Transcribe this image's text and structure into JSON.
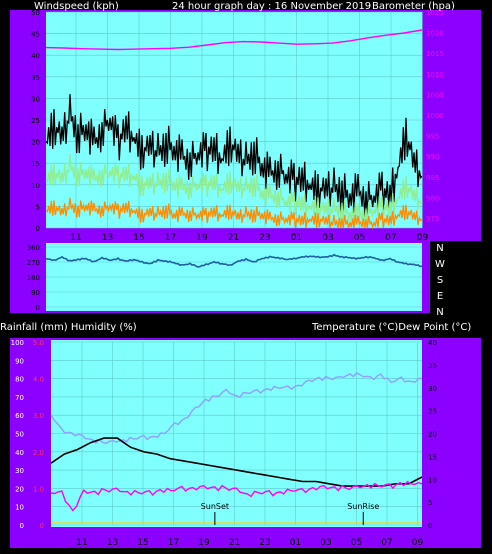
{
  "colors": {
    "background": "#000000",
    "panel": "#8b00ff",
    "plot_bg": "#80ffff",
    "grid": "#5ecaca",
    "gust": "#000000",
    "wind_avg": "#90ee90",
    "wind_low": "#ff8c00",
    "barometer": "#ff00ff",
    "direction": "#1f5fa0",
    "temperature": "#000000",
    "dew_point": "#ff00ff",
    "humidity": "#8fa0ff",
    "text_light": "#ffffff",
    "text_dark": "#000000",
    "tick_left": "#000000",
    "tick_right": "#ff00ff"
  },
  "header": {
    "left": "Windspeed (kph)",
    "center": "24 hour graph day : 16 November 2019",
    "right": "Barometer (hpa)"
  },
  "mid_labels": {
    "left": "Rainfall (mm)  Humidity (%)",
    "right": "Temperature (°C)Dew Point (°C)"
  },
  "chart_data": [
    {
      "type": "line",
      "name": "wind",
      "x_ticks": [
        "11",
        "13",
        "15",
        "17",
        "19",
        "21",
        "23",
        "01",
        "03",
        "05",
        "07",
        "09"
      ],
      "ylabel": "Windspeed (kph)",
      "ylim": [
        0,
        50
      ],
      "yticks": [
        "0",
        "5",
        "10",
        "15",
        "20",
        "25",
        "30",
        "35",
        "40",
        "45",
        "50"
      ],
      "y2label": "Barometer (hpa)",
      "y2lim": [
        970,
        1025
      ],
      "y2ticks": [
        "975",
        "980",
        "985",
        "990",
        "995",
        "1000",
        "1005",
        "1010",
        "1015",
        "1020",
        "1025"
      ],
      "series": [
        {
          "key": "gust",
          "values": [
            20,
            24,
            22,
            26,
            21,
            23,
            19,
            22,
            25,
            20,
            24,
            21,
            18,
            20,
            17,
            19,
            18,
            16,
            15,
            17,
            18,
            19,
            16,
            20,
            18,
            15,
            17,
            14,
            12,
            13,
            12,
            11,
            12,
            10,
            9,
            10,
            9,
            8,
            7,
            8,
            6,
            7,
            9,
            8,
            14,
            22,
            16,
            12
          ]
        },
        {
          "key": "avg",
          "values": [
            11,
            13,
            12,
            14,
            12,
            13,
            11,
            12,
            13,
            12,
            13,
            12,
            10,
            11,
            10,
            11,
            10,
            9,
            9,
            10,
            10,
            11,
            9,
            11,
            10,
            9,
            10,
            8,
            7,
            7,
            6,
            6,
            6,
            5,
            5,
            5,
            4,
            4,
            3,
            3,
            3,
            4,
            5,
            5,
            7,
            10,
            8,
            6
          ]
        },
        {
          "key": "low",
          "values": [
            4,
            5,
            4,
            5,
            4,
            5,
            4,
            4,
            5,
            4,
            5,
            4,
            3,
            4,
            3,
            4,
            3,
            3,
            3,
            3,
            3,
            4,
            3,
            4,
            3,
            3,
            3,
            3,
            2,
            2,
            2,
            2,
            2,
            2,
            2,
            2,
            1,
            1,
            1,
            1,
            1,
            1,
            2,
            2,
            3,
            4,
            3,
            2
          ]
        },
        {
          "key": "baro",
          "values": [
            1015.5,
            1015.4,
            1015.2,
            1015.1,
            1015.0,
            1015.1,
            1015.2,
            1015.3,
            1015.6,
            1016.2,
            1016.8,
            1017.1,
            1017.0,
            1016.7,
            1016.4,
            1016.5,
            1016.7,
            1017.3,
            1018.1,
            1018.8,
            1019.4,
            1020.2
          ]
        }
      ]
    },
    {
      "type": "line",
      "name": "wind_direction",
      "ylim": [
        0,
        360
      ],
      "yticks": [
        "360",
        "270",
        "180",
        "90",
        "0"
      ],
      "y2ticks": [
        "N",
        "W",
        "S",
        "E",
        "N"
      ],
      "values": [
        290,
        280,
        300,
        275,
        285,
        290,
        270,
        295,
        280,
        290,
        275,
        285,
        270,
        260,
        280,
        275,
        265,
        250,
        260,
        240,
        255,
        270,
        260,
        250,
        275,
        285,
        270,
        290,
        300,
        295,
        285,
        290,
        300,
        305,
        300,
        300,
        310,
        300,
        295,
        290,
        300,
        295,
        280,
        290,
        270,
        260,
        255,
        245
      ]
    },
    {
      "type": "line",
      "name": "temperature",
      "x_ticks": [
        "11",
        "13",
        "15",
        "17",
        "19",
        "21",
        "23",
        "01",
        "03",
        "05",
        "07",
        "09"
      ],
      "ylabel": "Rainfall (mm)  Humidity (%)",
      "ylim": [
        0,
        100
      ],
      "yticks": [
        "0",
        "10",
        "20",
        "30",
        "40",
        "50",
        "60",
        "70",
        "80",
        "90",
        "100"
      ],
      "rain_ticks": [
        "0",
        "1.0",
        "2.0",
        "3.0",
        "4.0",
        "5.0"
      ],
      "y2label": "Temperature (°C)Dew Point (°C)",
      "y2lim": [
        0,
        40
      ],
      "y2ticks": [
        "0",
        "5",
        "10",
        "15",
        "20",
        "25",
        "30",
        "35",
        "40"
      ],
      "annotations": [
        {
          "label": "SunSet",
          "hour": 20.6
        },
        {
          "label": "SunRise",
          "hour": 6.2
        }
      ],
      "series": [
        {
          "key": "temp",
          "values": [
            13.5,
            15.5,
            16.5,
            18,
            19,
            19,
            17,
            16,
            15.5,
            14.5,
            14,
            13.5,
            13,
            12.5,
            12,
            11.5,
            11,
            10.5,
            10,
            9.5,
            9.5,
            9,
            8.5,
            8.5,
            8.5,
            8.5,
            9,
            9,
            10.5
          ]
        },
        {
          "key": "dew",
          "values": [
            7,
            7,
            3,
            7,
            7,
            7.5,
            7.5,
            7,
            7,
            7,
            7.5,
            7.5,
            8,
            8,
            8,
            8,
            8,
            7.5,
            6.5,
            7,
            7,
            7,
            7.5,
            7.5,
            8,
            8,
            8,
            8,
            8,
            8.5,
            8.5,
            8.5,
            9,
            9,
            9
          ]
        },
        {
          "key": "humidity",
          "values": [
            60,
            52,
            50,
            48,
            46,
            45,
            45,
            46,
            47,
            48,
            48,
            50,
            55,
            58,
            63,
            68,
            70,
            73,
            70,
            72,
            73,
            74,
            75,
            75,
            76,
            78,
            80,
            80,
            80,
            82,
            82,
            80,
            82,
            78,
            80,
            78,
            80
          ]
        },
        {
          "key": "rain",
          "values": [
            0,
            0,
            0,
            0,
            0,
            0,
            0,
            0,
            0,
            0,
            0,
            0
          ]
        }
      ]
    }
  ]
}
